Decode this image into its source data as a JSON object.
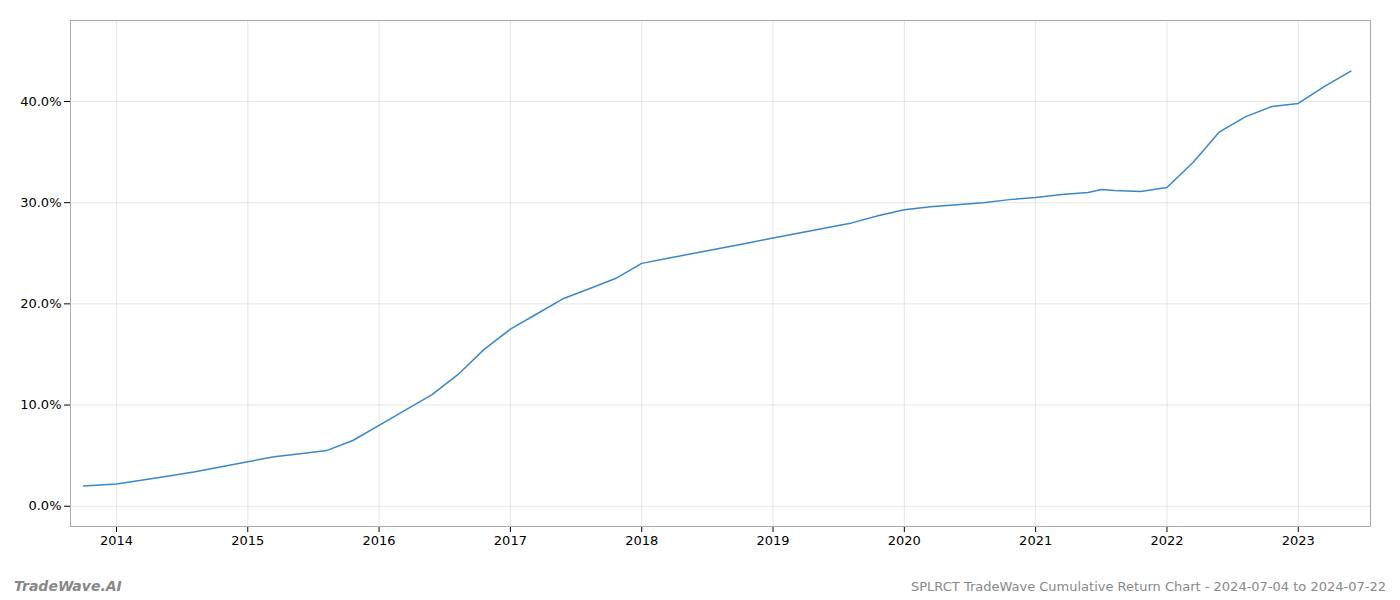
{
  "chart_data": {
    "type": "line",
    "title": "SPLRCT TradeWave Cumulative Return Chart - 2024-07-04 to 2024-07-22",
    "annotations": [
      "TradeWave.AI"
    ],
    "x": [
      2013.75,
      2014.0,
      2014.2,
      2014.4,
      2014.6,
      2014.8,
      2015.0,
      2015.2,
      2015.4,
      2015.6,
      2015.8,
      2016.0,
      2016.2,
      2016.4,
      2016.6,
      2016.8,
      2017.0,
      2017.2,
      2017.4,
      2017.6,
      2017.8,
      2018.0,
      2018.2,
      2018.4,
      2018.6,
      2018.8,
      2019.0,
      2019.2,
      2019.4,
      2019.6,
      2019.8,
      2020.0,
      2020.2,
      2020.4,
      2020.6,
      2020.8,
      2021.0,
      2021.2,
      2021.4,
      2021.5,
      2021.6,
      2021.8,
      2022.0,
      2022.2,
      2022.4,
      2022.6,
      2022.8,
      2023.0,
      2023.2,
      2023.4
    ],
    "values": [
      2.0,
      2.2,
      2.6,
      3.0,
      3.4,
      3.9,
      4.4,
      4.9,
      5.2,
      5.5,
      6.5,
      8.0,
      9.5,
      11.0,
      13.0,
      15.5,
      17.5,
      19.0,
      20.5,
      21.5,
      22.5,
      24.0,
      24.5,
      25.0,
      25.5,
      26.0,
      26.5,
      27.0,
      27.5,
      28.0,
      28.7,
      29.3,
      29.6,
      29.8,
      30.0,
      30.3,
      30.5,
      30.8,
      31.0,
      31.3,
      31.2,
      31.1,
      31.5,
      34.0,
      37.0,
      38.5,
      39.5,
      39.8,
      41.5,
      43.0
    ],
    "color": "#3a87c8",
    "xlim": [
      2013.65,
      2023.55
    ],
    "xticks": [
      2014,
      2015,
      2016,
      2017,
      2018,
      2019,
      2020,
      2021,
      2022,
      2023
    ],
    "ylim": [
      -2,
      48
    ],
    "yticks": [
      {
        "value": 0,
        "label": "0.0%"
      },
      {
        "value": 10,
        "label": "10.0%"
      },
      {
        "value": 20,
        "label": "20.0%"
      },
      {
        "value": 30,
        "label": "30.0%"
      },
      {
        "value": 40,
        "label": "40.0%"
      }
    ],
    "grid": true
  }
}
